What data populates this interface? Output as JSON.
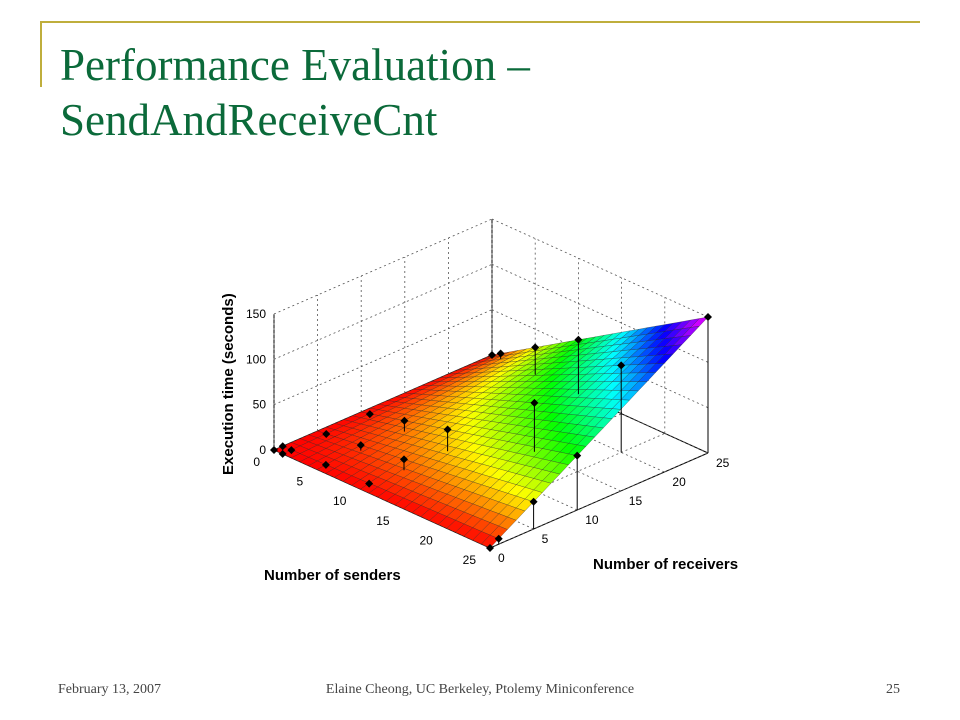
{
  "slide": {
    "title_line1": "Performance Evaluation –",
    "title_line2": "SendAndReceiveCnt",
    "footer_left": "February 13, 2007",
    "footer_center": "Elaine Cheong, UC Berkeley, Ptolemy Miniconference",
    "footer_right": "25"
  },
  "colors": {
    "title": "#0b6a3a",
    "frame": "#bfae3c"
  },
  "chart_data": {
    "type": "surface3d",
    "title": "",
    "xlabel": "Number of senders",
    "ylabel": "Number of receivers",
    "zlabel": "Execution time (seconds)",
    "xlim": [
      0,
      25
    ],
    "ylim": [
      0,
      25
    ],
    "zlim": [
      0,
      150
    ],
    "xticks": [
      0,
      5,
      10,
      15,
      20,
      25
    ],
    "yticks": [
      0,
      5,
      10,
      15,
      20,
      25
    ],
    "zticks": [
      0,
      50,
      100,
      150
    ],
    "grid": true,
    "colormap": "hsv, red at low execution time to magenta at high",
    "surface_model": "time ≈ 0.24 × senders × receivers",
    "markers": [
      {
        "senders": 0,
        "receivers": 0,
        "time": 0
      },
      {
        "senders": 0,
        "receivers": 1,
        "time": 0
      },
      {
        "senders": 1,
        "receivers": 0,
        "time": 0
      },
      {
        "senders": 1,
        "receivers": 1,
        "time": 0
      },
      {
        "senders": 5,
        "receivers": 1,
        "time": 1
      },
      {
        "senders": 5,
        "receivers": 5,
        "time": 6
      },
      {
        "senders": 1,
        "receivers": 5,
        "time": 1
      },
      {
        "senders": 10,
        "receivers": 1,
        "time": 2
      },
      {
        "senders": 10,
        "receivers": 5,
        "time": 12
      },
      {
        "senders": 10,
        "receivers": 10,
        "time": 24
      },
      {
        "senders": 5,
        "receivers": 10,
        "time": 12
      },
      {
        "senders": 1,
        "receivers": 10,
        "time": 2
      },
      {
        "senders": 25,
        "receivers": 0,
        "time": 0
      },
      {
        "senders": 25,
        "receivers": 1,
        "time": 6
      },
      {
        "senders": 25,
        "receivers": 5,
        "time": 30
      },
      {
        "senders": 25,
        "receivers": 10,
        "time": 60
      },
      {
        "senders": 25,
        "receivers": 25,
        "time": 150
      },
      {
        "senders": 0,
        "receivers": 25,
        "time": 0
      },
      {
        "senders": 1,
        "receivers": 25,
        "time": 6
      },
      {
        "senders": 5,
        "receivers": 25,
        "time": 30
      },
      {
        "senders": 10,
        "receivers": 25,
        "time": 60
      },
      {
        "senders": 15,
        "receivers": 15,
        "time": 54
      },
      {
        "senders": 20,
        "receivers": 20,
        "time": 96
      }
    ]
  }
}
